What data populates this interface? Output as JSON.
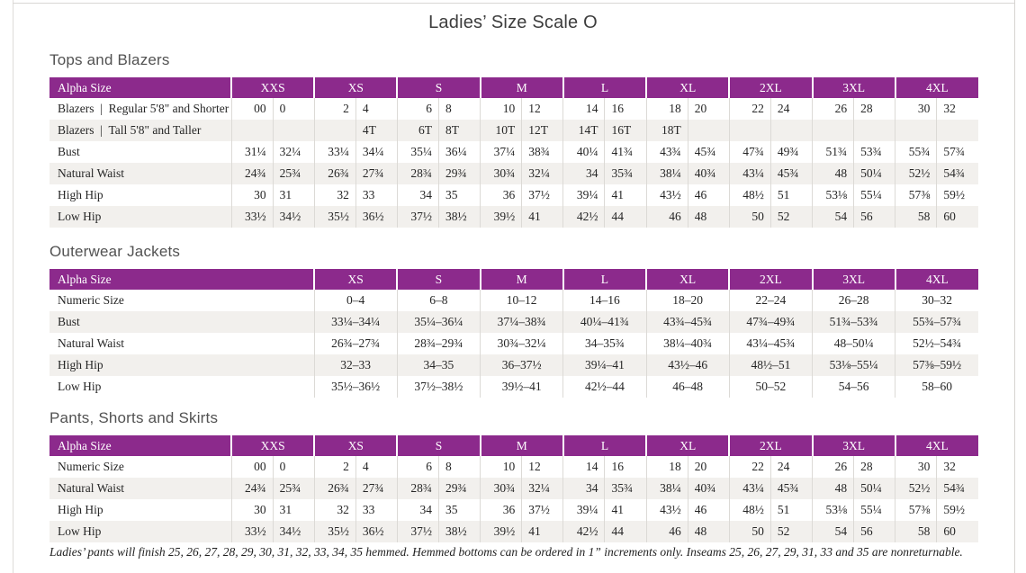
{
  "page": {
    "title": "Ladies’ Size Scale O",
    "footnote": "Ladies’ pants will finish 25, 26, 27, 28, 29, 30, 31, 32, 33, 34, 35 hemmed. Hemmed bottoms can be ordered in 1” increments only. Inseams 25, 26, 27, 29, 31, 33 and 35 are nonreturnable."
  },
  "colors": {
    "header_purple": "#8c2a8c",
    "row_stripe": "#f2f0ed",
    "divider": "#dcdad6"
  },
  "tables": [
    {
      "id": "tops-and-blazers-table",
      "heading": "Tops and Blazers",
      "layout": "paired",
      "corner_label": "Alpha Size",
      "size_headers": [
        "XXS",
        "XS",
        "S",
        "M",
        "L",
        "XL",
        "2XL",
        "3XL",
        "4XL"
      ],
      "rows": [
        {
          "label": "Blazers  |  Regular 5'8\" and Shorter",
          "values": [
            "00",
            "0",
            "2",
            "4",
            "6",
            "8",
            "10",
            "12",
            "14",
            "16",
            "18",
            "20",
            "22",
            "24",
            "26",
            "28",
            "30",
            "32"
          ]
        },
        {
          "label": "Blazers  |  Tall 5'8\" and Taller",
          "values": [
            "",
            "",
            "",
            "4T",
            "6T",
            "8T",
            "10T",
            "12T",
            "14T",
            "16T",
            "18T",
            "",
            "",
            "",
            "",
            "",
            "",
            ""
          ]
        },
        {
          "label": "Bust",
          "values": [
            "31¼",
            "32¼",
            "33¼",
            "34¼",
            "35¼",
            "36¼",
            "37¼",
            "38¾",
            "40¼",
            "41¾",
            "43¾",
            "45¾",
            "47¾",
            "49¾",
            "51¾",
            "53¾",
            "55¾",
            "57¾"
          ]
        },
        {
          "label": "Natural Waist",
          "values": [
            "24¾",
            "25¾",
            "26¾",
            "27¾",
            "28¾",
            "29¾",
            "30¾",
            "32¼",
            "34",
            "35¾",
            "38¼",
            "40¾",
            "43¼",
            "45¾",
            "48",
            "50¼",
            "52½",
            "54¾"
          ]
        },
        {
          "label": "High Hip",
          "values": [
            "30",
            "31",
            "32",
            "33",
            "34",
            "35",
            "36",
            "37½",
            "39¼",
            "41",
            "43½",
            "46",
            "48½",
            "51",
            "53⅛",
            "55¼",
            "57⅜",
            "59½"
          ]
        },
        {
          "label": "Low Hip",
          "values": [
            "33½",
            "34½",
            "35½",
            "36½",
            "37½",
            "38½",
            "39½",
            "41",
            "42½",
            "44",
            "46",
            "48",
            "50",
            "52",
            "54",
            "56",
            "58",
            "60"
          ]
        }
      ]
    },
    {
      "id": "outerwear-jackets-table",
      "heading": "Outerwear Jackets",
      "layout": "single",
      "corner_label": "Alpha Size",
      "size_headers": [
        "XS",
        "S",
        "M",
        "L",
        "XL",
        "2XL",
        "3XL",
        "4XL"
      ],
      "rows": [
        {
          "label": "Numeric Size",
          "values": [
            "0–4",
            "6–8",
            "10–12",
            "14–16",
            "18–20",
            "22–24",
            "26–28",
            "30–32"
          ]
        },
        {
          "label": "Bust",
          "values": [
            "33¼–34¼",
            "35¼–36¼",
            "37¼–38¾",
            "40¼–41¾",
            "43¾–45¾",
            "47¾–49¾",
            "51¾–53¾",
            "55¾–57¾"
          ]
        },
        {
          "label": "Natural Waist",
          "values": [
            "26¾–27¾",
            "28¾–29¾",
            "30¾–32¼",
            "34–35¾",
            "38¼–40¾",
            "43¼–45¾",
            "48–50¼",
            "52½–54¾"
          ]
        },
        {
          "label": "High Hip",
          "values": [
            "32–33",
            "34–35",
            "36–37½",
            "39¼–41",
            "43½–46",
            "48½–51",
            "53⅛–55¼",
            "57⅜–59½"
          ]
        },
        {
          "label": "Low Hip",
          "values": [
            "35½–36½",
            "37½–38½",
            "39½–41",
            "42½–44",
            "46–48",
            "50–52",
            "54–56",
            "58–60"
          ]
        }
      ]
    },
    {
      "id": "pants-shorts-skirts-table",
      "heading": "Pants, Shorts and Skirts",
      "layout": "paired",
      "corner_label": "Alpha Size",
      "size_headers": [
        "XXS",
        "XS",
        "S",
        "M",
        "L",
        "XL",
        "2XL",
        "3XL",
        "4XL"
      ],
      "rows": [
        {
          "label": "Numeric Size",
          "values": [
            "00",
            "0",
            "2",
            "4",
            "6",
            "8",
            "10",
            "12",
            "14",
            "16",
            "18",
            "20",
            "22",
            "24",
            "26",
            "28",
            "30",
            "32"
          ]
        },
        {
          "label": "Natural Waist",
          "values": [
            "24¾",
            "25¾",
            "26¾",
            "27¾",
            "28¾",
            "29¾",
            "30¾",
            "32¼",
            "34",
            "35¾",
            "38¼",
            "40¾",
            "43¼",
            "45¾",
            "48",
            "50¼",
            "52½",
            "54¾"
          ]
        },
        {
          "label": "High Hip",
          "values": [
            "30",
            "31",
            "32",
            "33",
            "34",
            "35",
            "36",
            "37½",
            "39¼",
            "41",
            "43½",
            "46",
            "48½",
            "51",
            "53⅛",
            "55¼",
            "57⅜",
            "59½"
          ]
        },
        {
          "label": "Low Hip",
          "values": [
            "33½",
            "34½",
            "35½",
            "36½",
            "37½",
            "38½",
            "39½",
            "41",
            "42½",
            "44",
            "46",
            "48",
            "50",
            "52",
            "54",
            "56",
            "58",
            "60"
          ]
        }
      ]
    }
  ]
}
